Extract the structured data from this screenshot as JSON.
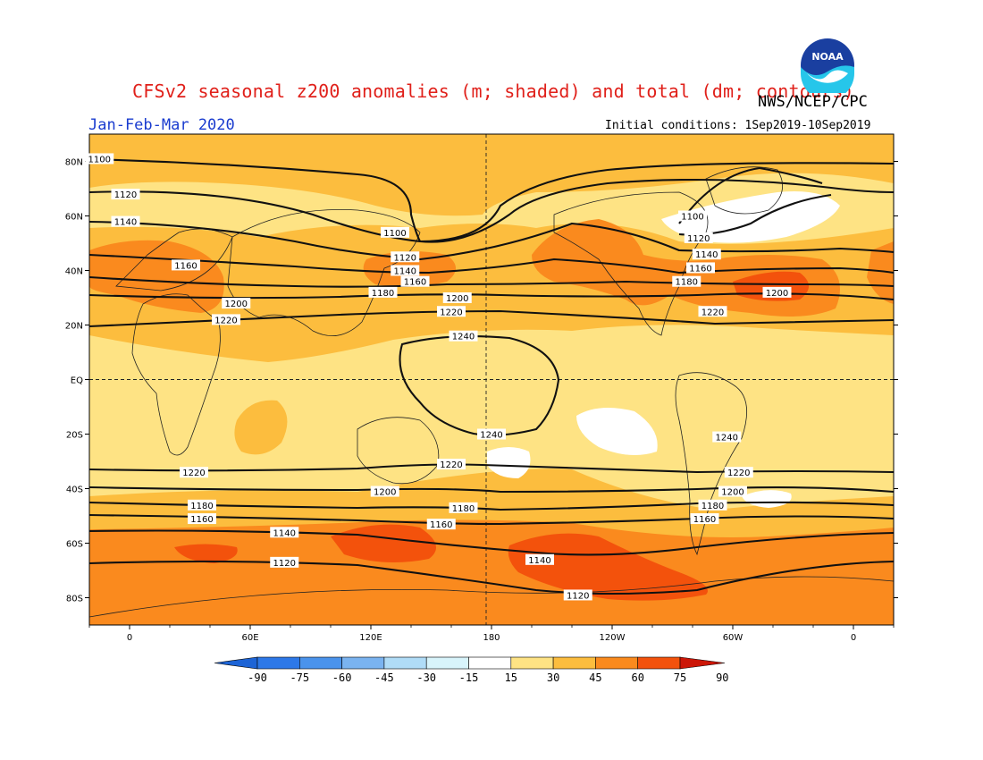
{
  "title": "CFSv2 seasonal z200 anomalies (m; shaded) and total (dm; contours)",
  "agency": "NWS/NCEP/CPC",
  "season": "Jan-Feb-Mar 2020",
  "initial_conditions": "Initial conditions: 1Sep2019-10Sep2019",
  "logo_text": "NOAA",
  "colors": {
    "shade_0_15": "#ffffff",
    "shade_15_30": "#fee384",
    "shade_30_45": "#fcbd3e",
    "shade_45_60": "#fa8a1e",
    "shade_60_75": "#f3520c",
    "shade_75_90": "#cc1607",
    "neg_90": "#1d64d6",
    "neg_75": "#2d78e8",
    "neg_60": "#4a93ec",
    "neg_45": "#7ab3f0",
    "neg_30": "#b0dcf7",
    "neg_15": "#d8f4fb"
  },
  "chart_data": {
    "type": "map",
    "projection": "equirectangular",
    "lon_range": [
      -20,
      380
    ],
    "lat_range": [
      -90,
      90
    ],
    "lat_ticks": [
      "80N",
      "60N",
      "40N",
      "20N",
      "EQ",
      "20S",
      "40S",
      "60S",
      "80S"
    ],
    "lon_ticks": [
      "0",
      "60E",
      "120E",
      "180",
      "120W",
      "60W",
      "0"
    ],
    "shading_variable": "z200 anomaly (m)",
    "contour_variable": "z200 total (dm)",
    "colorbar_labels": [
      "-90",
      "-75",
      "-60",
      "-45",
      "-30",
      "-15",
      "15",
      "30",
      "45",
      "60",
      "75",
      "90"
    ],
    "contour_labels": [
      {
        "lon": -15,
        "lat": 81,
        "text": "1100"
      },
      {
        "lon": -2,
        "lat": 68,
        "text": "1120"
      },
      {
        "lon": -2,
        "lat": 58,
        "text": "1140"
      },
      {
        "lon": 28,
        "lat": 42,
        "text": "1160"
      },
      {
        "lon": 53,
        "lat": 28,
        "text": "1200"
      },
      {
        "lon": 48,
        "lat": 22,
        "text": "1220"
      },
      {
        "lon": 132,
        "lat": 54,
        "text": "1100"
      },
      {
        "lon": 137,
        "lat": 45,
        "text": "1120"
      },
      {
        "lon": 137,
        "lat": 40,
        "text": "1140"
      },
      {
        "lon": 142,
        "lat": 36,
        "text": "1160"
      },
      {
        "lon": 126,
        "lat": 32,
        "text": "1180"
      },
      {
        "lon": 163,
        "lat": 30,
        "text": "1200"
      },
      {
        "lon": 160,
        "lat": 25,
        "text": "1220"
      },
      {
        "lon": 166,
        "lat": 16,
        "text": "1240"
      },
      {
        "lon": 280,
        "lat": 60,
        "text": "1100"
      },
      {
        "lon": 283,
        "lat": 52,
        "text": "1120"
      },
      {
        "lon": 287,
        "lat": 46,
        "text": "1140"
      },
      {
        "lon": 284,
        "lat": 41,
        "text": "1160"
      },
      {
        "lon": 277,
        "lat": 36,
        "text": "1180"
      },
      {
        "lon": 322,
        "lat": 32,
        "text": "1200"
      },
      {
        "lon": 290,
        "lat": 25,
        "text": "1220"
      },
      {
        "lon": 180,
        "lat": -20,
        "text": "1240"
      },
      {
        "lon": 297,
        "lat": -21,
        "text": "1240"
      },
      {
        "lon": 160,
        "lat": -31,
        "text": "1220"
      },
      {
        "lon": 303,
        "lat": -34,
        "text": "1220"
      },
      {
        "lon": 32,
        "lat": -34,
        "text": "1220"
      },
      {
        "lon": 127,
        "lat": -41,
        "text": "1200"
      },
      {
        "lon": 300,
        "lat": -41,
        "text": "1200"
      },
      {
        "lon": 36,
        "lat": -46,
        "text": "1180"
      },
      {
        "lon": 166,
        "lat": -47,
        "text": "1180"
      },
      {
        "lon": 290,
        "lat": -46,
        "text": "1180"
      },
      {
        "lon": 36,
        "lat": -51,
        "text": "1160"
      },
      {
        "lon": 155,
        "lat": -53,
        "text": "1160"
      },
      {
        "lon": 286,
        "lat": -51,
        "text": "1160"
      },
      {
        "lon": 77,
        "lat": -56,
        "text": "1140"
      },
      {
        "lon": 204,
        "lat": -66,
        "text": "1140"
      },
      {
        "lon": 77,
        "lat": -67,
        "text": "1120"
      },
      {
        "lon": 223,
        "lat": -79,
        "text": "1120"
      }
    ]
  }
}
